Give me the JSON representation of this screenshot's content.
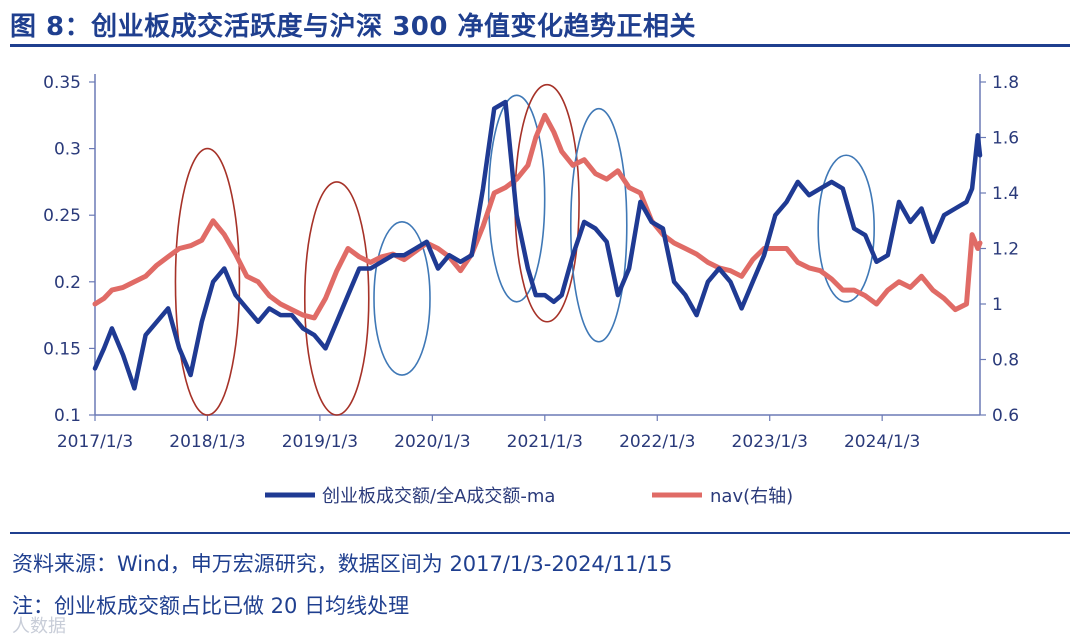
{
  "header": {
    "title": "图 8：创业板成交活跃度与沪深 300 净值变化趋势正相关"
  },
  "footer": {
    "source": "资料来源：Wind，申万宏源研究，数据区间为 2017/1/3-2024/11/15",
    "note": "注：创业板成交额占比已做 20 日均线处理",
    "watermark": "人数据"
  },
  "colors": {
    "series_blue": "#1f3a93",
    "series_red": "#e06b66",
    "ellipse_blue": "#3f78b6",
    "ellipse_red": "#a63228",
    "axis": "#6b7ab5"
  },
  "chart_data": {
    "type": "line",
    "title": "创业板成交活跃度与沪深 300 净值变化趋势正相关",
    "x_tick_labels": [
      "2017/1/3",
      "2018/1/3",
      "2019/1/3",
      "2020/1/3",
      "2021/1/3",
      "2022/1/3",
      "2023/1/3",
      "2024/1/3"
    ],
    "x_range": [
      2017.0,
      2024.87
    ],
    "y_left": {
      "range": [
        0.1,
        0.35
      ],
      "ticks": [
        0.1,
        0.15,
        0.2,
        0.25,
        0.3,
        0.35
      ],
      "tick_labels": [
        "0.1",
        "0.15",
        "0.2",
        "0.25",
        "0.3",
        "0.35"
      ]
    },
    "y_right": {
      "range": [
        0.6,
        1.8
      ],
      "ticks": [
        0.6,
        0.8,
        1.0,
        1.2,
        1.4,
        1.6,
        1.8
      ],
      "tick_labels": [
        "0.6",
        "0.8",
        "1",
        "1.2",
        "1.4",
        "1.6",
        "1.8"
      ]
    },
    "legend_position": "bottom-center",
    "series": [
      {
        "name": "创业板成交额/全A成交额-ma",
        "axis": "left",
        "x": [
          2017.0,
          2017.08,
          2017.15,
          2017.25,
          2017.35,
          2017.45,
          2017.55,
          2017.65,
          2017.75,
          2017.85,
          2017.95,
          2018.05,
          2018.15,
          2018.25,
          2018.35,
          2018.45,
          2018.55,
          2018.65,
          2018.75,
          2018.85,
          2018.95,
          2019.05,
          2019.15,
          2019.25,
          2019.35,
          2019.45,
          2019.55,
          2019.65,
          2019.75,
          2019.85,
          2019.95,
          2020.05,
          2020.15,
          2020.25,
          2020.35,
          2020.45,
          2020.55,
          2020.65,
          2020.75,
          2020.85,
          2020.92,
          2021.0,
          2021.08,
          2021.15,
          2021.25,
          2021.35,
          2021.45,
          2021.55,
          2021.65,
          2021.75,
          2021.85,
          2021.95,
          2022.05,
          2022.15,
          2022.25,
          2022.35,
          2022.45,
          2022.55,
          2022.65,
          2022.75,
          2022.85,
          2022.95,
          2023.05,
          2023.15,
          2023.25,
          2023.35,
          2023.45,
          2023.55,
          2023.65,
          2023.75,
          2023.85,
          2023.95,
          2024.05,
          2024.15,
          2024.25,
          2024.35,
          2024.45,
          2024.55,
          2024.65,
          2024.75,
          2024.8,
          2024.85,
          2024.87
        ],
        "y": [
          0.135,
          0.15,
          0.165,
          0.145,
          0.12,
          0.16,
          0.17,
          0.18,
          0.15,
          0.13,
          0.17,
          0.2,
          0.21,
          0.19,
          0.18,
          0.17,
          0.18,
          0.175,
          0.175,
          0.165,
          0.16,
          0.15,
          0.17,
          0.19,
          0.21,
          0.21,
          0.215,
          0.22,
          0.22,
          0.225,
          0.23,
          0.21,
          0.22,
          0.215,
          0.22,
          0.27,
          0.33,
          0.335,
          0.25,
          0.21,
          0.19,
          0.19,
          0.185,
          0.19,
          0.22,
          0.245,
          0.24,
          0.23,
          0.19,
          0.21,
          0.26,
          0.245,
          0.24,
          0.2,
          0.19,
          0.175,
          0.2,
          0.21,
          0.2,
          0.18,
          0.2,
          0.22,
          0.25,
          0.26,
          0.275,
          0.265,
          0.27,
          0.275,
          0.27,
          0.24,
          0.235,
          0.215,
          0.22,
          0.26,
          0.245,
          0.255,
          0.23,
          0.25,
          0.255,
          0.26,
          0.27,
          0.31,
          0.295
        ]
      },
      {
        "name": "nav(右轴)",
        "axis": "right",
        "x": [
          2017.0,
          2017.08,
          2017.15,
          2017.25,
          2017.35,
          2017.45,
          2017.55,
          2017.65,
          2017.75,
          2017.85,
          2017.95,
          2018.05,
          2018.15,
          2018.25,
          2018.35,
          2018.45,
          2018.55,
          2018.65,
          2018.75,
          2018.85,
          2018.95,
          2019.05,
          2019.15,
          2019.25,
          2019.35,
          2019.45,
          2019.55,
          2019.65,
          2019.75,
          2019.85,
          2019.95,
          2020.05,
          2020.15,
          2020.25,
          2020.35,
          2020.45,
          2020.55,
          2020.65,
          2020.75,
          2020.85,
          2020.92,
          2021.0,
          2021.08,
          2021.15,
          2021.25,
          2021.35,
          2021.45,
          2021.55,
          2021.65,
          2021.75,
          2021.85,
          2021.95,
          2022.05,
          2022.15,
          2022.25,
          2022.35,
          2022.45,
          2022.55,
          2022.65,
          2022.75,
          2022.85,
          2022.95,
          2023.05,
          2023.15,
          2023.25,
          2023.35,
          2023.45,
          2023.55,
          2023.65,
          2023.75,
          2023.85,
          2023.95,
          2024.05,
          2024.15,
          2024.25,
          2024.35,
          2024.45,
          2024.55,
          2024.65,
          2024.75,
          2024.8,
          2024.85,
          2024.87
        ],
        "y": [
          1.0,
          1.02,
          1.05,
          1.06,
          1.08,
          1.1,
          1.14,
          1.17,
          1.2,
          1.21,
          1.23,
          1.3,
          1.25,
          1.18,
          1.1,
          1.08,
          1.03,
          1.0,
          0.98,
          0.96,
          0.95,
          1.02,
          1.12,
          1.2,
          1.17,
          1.15,
          1.17,
          1.18,
          1.16,
          1.19,
          1.22,
          1.2,
          1.17,
          1.12,
          1.18,
          1.28,
          1.4,
          1.42,
          1.45,
          1.5,
          1.6,
          1.68,
          1.62,
          1.55,
          1.5,
          1.52,
          1.47,
          1.45,
          1.48,
          1.42,
          1.4,
          1.3,
          1.25,
          1.22,
          1.2,
          1.18,
          1.15,
          1.13,
          1.12,
          1.1,
          1.16,
          1.2,
          1.2,
          1.2,
          1.15,
          1.13,
          1.12,
          1.09,
          1.05,
          1.05,
          1.03,
          1.0,
          1.05,
          1.08,
          1.06,
          1.1,
          1.05,
          1.02,
          0.98,
          1.0,
          1.25,
          1.2,
          1.22
        ]
      }
    ],
    "highlights": [
      {
        "type": "ellipse",
        "color": "red",
        "x_center": 2018.0,
        "y_left_range": [
          0.1,
          0.3
        ]
      },
      {
        "type": "ellipse",
        "color": "red",
        "x_center": 2019.15,
        "y_left_range": [
          0.1,
          0.275
        ]
      },
      {
        "type": "ellipse",
        "color": "blue",
        "x_center": 2019.73,
        "y_left_range": [
          0.13,
          0.245
        ]
      },
      {
        "type": "ellipse",
        "color": "blue",
        "x_center": 2020.75,
        "y_left_range": [
          0.185,
          0.34
        ]
      },
      {
        "type": "ellipse",
        "color": "red",
        "x_center": 2021.02,
        "y_left_range": [
          0.17,
          0.348
        ]
      },
      {
        "type": "ellipse",
        "color": "blue",
        "x_center": 2021.48,
        "y_left_range": [
          0.155,
          0.33
        ]
      },
      {
        "type": "ellipse",
        "color": "blue",
        "x_center": 2023.68,
        "y_left_range": [
          0.185,
          0.295
        ]
      }
    ]
  }
}
